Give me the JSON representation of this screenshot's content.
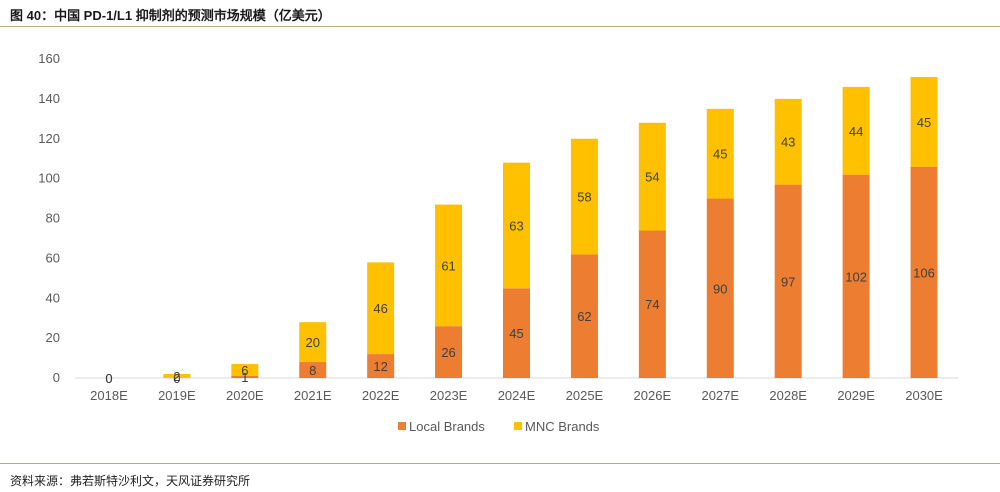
{
  "header": {
    "title": "图 40：中国 PD-1/L1 抑制剂的预测市场规模（亿美元）"
  },
  "footer": {
    "source": "资料来源：弗若斯特沙利文，天风证券研究所"
  },
  "colors": {
    "local": "#ED7D31",
    "mnc": "#FFC000",
    "axis": "#D9D9D9"
  },
  "chart_data": {
    "type": "bar",
    "stacked": true,
    "categories": [
      "2018E",
      "2019E",
      "2020E",
      "2021E",
      "2022E",
      "2023E",
      "2024E",
      "2025E",
      "2026E",
      "2027E",
      "2028E",
      "2029E",
      "2030E"
    ],
    "series": [
      {
        "name": "Local Brands",
        "values": [
          0,
          0,
          1,
          8,
          12,
          26,
          45,
          62,
          74,
          90,
          97,
          102,
          106
        ]
      },
      {
        "name": "MNC Brands",
        "values": [
          0,
          2,
          6,
          20,
          46,
          61,
          63,
          58,
          54,
          45,
          43,
          44,
          45
        ]
      }
    ],
    "title": "",
    "xlabel": "",
    "ylabel": "",
    "ylim": [
      0,
      160
    ],
    "yticks": [
      0,
      20,
      40,
      60,
      80,
      100,
      120,
      140,
      160
    ],
    "grid": false,
    "legend": "bottom"
  }
}
